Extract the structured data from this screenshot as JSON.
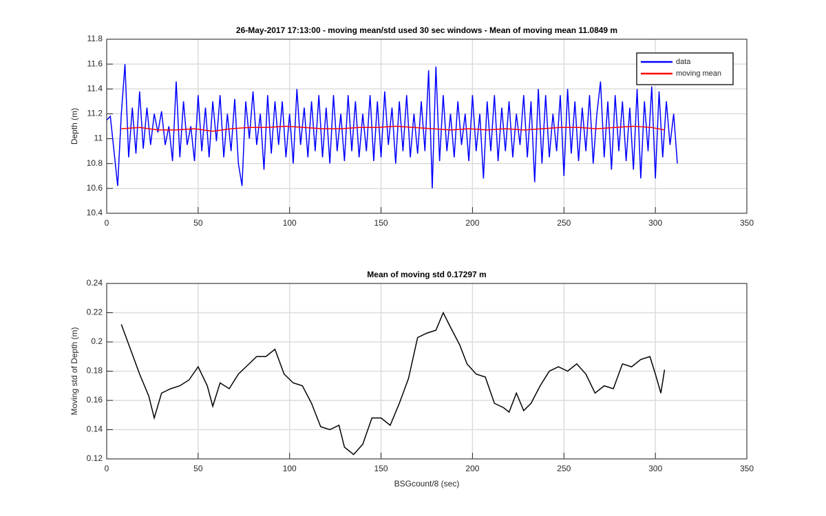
{
  "chart_data": [
    {
      "type": "line",
      "title": "26-May-2017 17:13:00 - moving mean/std used 30 sec windows - Mean of moving mean 11.0849 m",
      "ylabel": "Depth (m)",
      "xlim": [
        0,
        350
      ],
      "xticks": [
        0,
        50,
        100,
        150,
        200,
        250,
        300,
        350
      ],
      "ylim": [
        10.4,
        11.8
      ],
      "yticks": [
        10.4,
        10.6,
        10.8,
        11,
        11.2,
        11.4,
        11.6,
        11.8
      ],
      "grid": true,
      "legend": "northeast",
      "series": [
        {
          "name": "data",
          "color": "#0000ff",
          "x": [
            0,
            2,
            4,
            6,
            8,
            10,
            12,
            14,
            16,
            18,
            20,
            22,
            24,
            26,
            28,
            30,
            32,
            34,
            36,
            38,
            40,
            42,
            44,
            46,
            48,
            50,
            52,
            54,
            56,
            58,
            60,
            62,
            64,
            66,
            68,
            70,
            72,
            74,
            76,
            78,
            80,
            82,
            84,
            86,
            88,
            90,
            92,
            94,
            96,
            98,
            100,
            102,
            104,
            106,
            108,
            110,
            112,
            114,
            116,
            118,
            120,
            122,
            124,
            126,
            128,
            130,
            132,
            134,
            136,
            138,
            140,
            142,
            144,
            146,
            148,
            150,
            152,
            154,
            156,
            158,
            160,
            162,
            164,
            166,
            168,
            170,
            172,
            174,
            176,
            178,
            180,
            182,
            184,
            186,
            188,
            190,
            192,
            194,
            196,
            198,
            200,
            202,
            204,
            206,
            208,
            210,
            212,
            214,
            216,
            218,
            220,
            222,
            224,
            226,
            228,
            230,
            232,
            234,
            236,
            238,
            240,
            242,
            244,
            246,
            248,
            250,
            252,
            254,
            256,
            258,
            260,
            262,
            264,
            266,
            268,
            270,
            272,
            274,
            276,
            278,
            280,
            282,
            284,
            286,
            288,
            290,
            292,
            294,
            296,
            298,
            300,
            302,
            304,
            306,
            308,
            310,
            312
          ],
          "values": [
            11.15,
            11.18,
            10.9,
            10.62,
            11.2,
            11.6,
            10.85,
            11.25,
            10.88,
            11.38,
            10.92,
            11.25,
            10.95,
            11.2,
            11.05,
            11.22,
            10.95,
            11.1,
            10.82,
            11.46,
            10.85,
            11.3,
            10.95,
            11.1,
            10.82,
            11.35,
            10.9,
            11.25,
            10.85,
            11.3,
            10.98,
            11.35,
            10.85,
            11.2,
            10.9,
            11.32,
            10.8,
            10.62,
            11.3,
            11.0,
            11.38,
            10.95,
            11.2,
            10.75,
            11.35,
            10.88,
            11.3,
            10.95,
            11.3,
            10.85,
            11.2,
            10.8,
            11.4,
            10.95,
            11.25,
            10.85,
            11.3,
            10.9,
            11.35,
            10.85,
            11.25,
            10.8,
            11.35,
            10.9,
            11.2,
            10.82,
            11.35,
            10.9,
            11.3,
            10.85,
            11.2,
            10.9,
            11.35,
            10.82,
            11.3,
            10.85,
            11.38,
            10.95,
            11.25,
            10.8,
            11.3,
            10.9,
            11.35,
            10.85,
            11.2,
            10.88,
            11.3,
            10.9,
            11.55,
            10.6,
            11.58,
            10.82,
            11.35,
            10.9,
            11.2,
            10.85,
            11.3,
            10.95,
            11.2,
            10.82,
            11.35,
            10.9,
            11.2,
            10.68,
            11.3,
            10.9,
            11.35,
            10.82,
            11.25,
            10.9,
            11.3,
            10.85,
            11.2,
            10.95,
            11.35,
            10.85,
            11.3,
            10.65,
            11.4,
            10.8,
            11.35,
            10.85,
            11.2,
            10.9,
            11.35,
            10.7,
            11.4,
            10.88,
            11.3,
            10.82,
            11.25,
            10.9,
            11.35,
            10.8,
            11.2,
            11.46,
            10.85,
            11.3,
            10.75,
            11.35,
            10.9,
            11.3,
            10.82,
            11.25,
            10.75,
            11.4,
            10.68,
            11.3,
            10.9,
            11.42,
            10.68,
            11.38,
            10.85,
            11.3,
            10.95,
            11.2,
            10.8
          ]
        },
        {
          "name": "moving mean",
          "color": "#ff0000",
          "x": [
            8,
            18,
            28,
            38,
            48,
            58,
            68,
            78,
            88,
            98,
            108,
            118,
            128,
            138,
            148,
            158,
            168,
            178,
            188,
            198,
            208,
            218,
            228,
            238,
            248,
            258,
            268,
            278,
            288,
            298,
            305
          ],
          "values": [
            11.08,
            11.09,
            11.07,
            11.07,
            11.08,
            11.06,
            11.08,
            11.09,
            11.09,
            11.1,
            11.09,
            11.08,
            11.08,
            11.09,
            11.09,
            11.1,
            11.09,
            11.08,
            11.07,
            11.08,
            11.07,
            11.08,
            11.07,
            11.08,
            11.09,
            11.09,
            11.08,
            11.09,
            11.1,
            11.09,
            11.07
          ]
        }
      ]
    },
    {
      "type": "line",
      "title": "Mean of moving std 0.17297 m",
      "xlabel": "BSGcount/8 (sec)",
      "ylabel": "Moving std of Depth (m)",
      "xlim": [
        0,
        350
      ],
      "xticks": [
        0,
        50,
        100,
        150,
        200,
        250,
        300,
        350
      ],
      "ylim": [
        0.12,
        0.24
      ],
      "yticks": [
        0.12,
        0.14,
        0.16,
        0.18,
        0.2,
        0.22,
        0.24
      ],
      "grid": true,
      "series": [
        {
          "color": "#000000",
          "x": [
            8,
            13,
            18,
            23,
            26,
            30,
            35,
            40,
            45,
            50,
            55,
            58,
            62,
            67,
            72,
            77,
            82,
            87,
            92,
            97,
            102,
            107,
            112,
            117,
            122,
            127,
            130,
            135,
            140,
            145,
            150,
            155,
            160,
            165,
            170,
            175,
            180,
            184,
            188,
            193,
            197,
            202,
            207,
            212,
            217,
            220,
            224,
            228,
            232,
            237,
            242,
            247,
            252,
            257,
            262,
            267,
            272,
            277,
            282,
            287,
            292,
            297,
            300,
            303,
            305
          ],
          "values": [
            0.212,
            0.195,
            0.178,
            0.163,
            0.148,
            0.165,
            0.168,
            0.17,
            0.174,
            0.183,
            0.17,
            0.156,
            0.172,
            0.168,
            0.178,
            0.184,
            0.19,
            0.19,
            0.195,
            0.178,
            0.172,
            0.17,
            0.158,
            0.142,
            0.14,
            0.143,
            0.128,
            0.123,
            0.13,
            0.148,
            0.148,
            0.143,
            0.158,
            0.175,
            0.203,
            0.206,
            0.208,
            0.22,
            0.21,
            0.198,
            0.185,
            0.178,
            0.176,
            0.158,
            0.155,
            0.152,
            0.165,
            0.153,
            0.158,
            0.17,
            0.18,
            0.183,
            0.18,
            0.185,
            0.178,
            0.165,
            0.17,
            0.168,
            0.185,
            0.183,
            0.188,
            0.19,
            0.178,
            0.165,
            0.181
          ]
        }
      ]
    }
  ]
}
